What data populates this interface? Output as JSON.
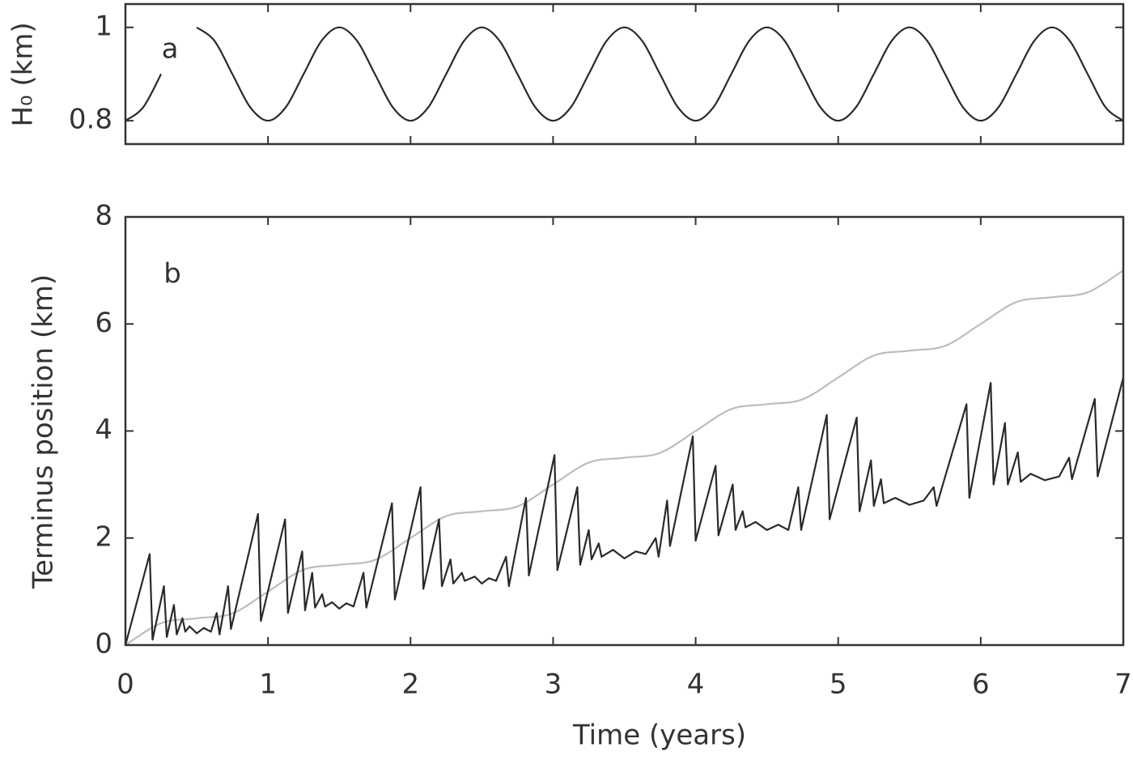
{
  "chart_data": [
    {
      "type": "line",
      "y_label": "H₀ (km)",
      "annotation": "a",
      "xlim": [
        0,
        7
      ],
      "ylim": [
        0.75,
        1.05
      ],
      "yticks": [
        0.8,
        1
      ],
      "x": [
        0,
        0.125,
        0.25,
        0.375,
        0.5,
        0.625,
        0.75,
        0.875,
        1,
        1.125,
        1.25,
        1.375,
        1.5,
        1.625,
        1.75,
        1.875,
        2,
        2.125,
        2.25,
        2.375,
        2.5,
        2.625,
        2.75,
        2.875,
        3,
        3.125,
        3.25,
        3.375,
        3.5,
        3.625,
        3.75,
        3.875,
        4,
        4.125,
        4.25,
        4.375,
        4.5,
        4.625,
        4.75,
        4.875,
        5,
        5.125,
        5.25,
        5.375,
        5.5,
        5.625,
        5.75,
        5.875,
        6,
        6.125,
        6.25,
        6.375,
        6.5,
        6.625,
        6.75,
        6.875,
        7
      ],
      "series": [
        {
          "color": "#2a2a2a",
          "values": [
            0.8,
            0.829,
            0.9,
            null,
            1,
            0.971,
            0.9,
            0.829,
            0.8,
            0.829,
            0.9,
            0.971,
            1,
            0.971,
            0.9,
            0.829,
            0.8,
            0.829,
            0.9,
            0.971,
            1,
            0.971,
            0.9,
            0.829,
            0.8,
            0.829,
            0.9,
            0.971,
            1,
            0.971,
            0.9,
            0.829,
            0.8,
            0.829,
            0.9,
            0.971,
            1,
            0.971,
            0.9,
            0.829,
            0.8,
            0.829,
            0.9,
            0.971,
            1,
            0.971,
            0.9,
            0.829,
            0.8,
            0.829,
            0.9,
            0.971,
            1,
            0.971,
            0.9,
            0.829,
            0.8
          ]
        }
      ]
    },
    {
      "type": "line",
      "x_label": "Time (years)",
      "y_label": "Terminus position (km)",
      "annotation": "b",
      "xlim": [
        0,
        7
      ],
      "ylim": [
        0,
        8
      ],
      "xticks": [
        0,
        1,
        2,
        3,
        4,
        5,
        6,
        7
      ],
      "yticks": [
        0,
        2,
        4,
        6,
        8
      ],
      "series": [
        {
          "color": "#bdbdbd",
          "smooth": true,
          "x": [
            0,
            0.25,
            0.5,
            0.75,
            1,
            1.25,
            1.5,
            1.75,
            2,
            2.25,
            2.5,
            2.75,
            3,
            3.25,
            3.5,
            3.75,
            4,
            4.25,
            4.5,
            4.75,
            5,
            5.25,
            5.5,
            5.75,
            6,
            6.25,
            6.5,
            6.75,
            7
          ],
          "values": [
            0,
            0.409,
            0.5,
            0.591,
            1,
            1.409,
            1.5,
            1.591,
            2,
            2.409,
            2.5,
            2.591,
            3,
            3.409,
            3.5,
            3.591,
            4,
            4.409,
            4.5,
            4.591,
            5,
            5.409,
            5.5,
            5.591,
            6,
            6.409,
            6.5,
            6.591,
            7
          ]
        },
        {
          "color": "#2a2a2a",
          "smooth": false,
          "x": [
            0,
            0.17,
            0.19,
            0.27,
            0.29,
            0.34,
            0.36,
            0.4,
            0.42,
            0.45,
            0.5,
            0.55,
            0.6,
            0.64,
            0.66,
            0.72,
            0.74,
            0.93,
            0.95,
            1.12,
            1.14,
            1.24,
            1.26,
            1.31,
            1.33,
            1.38,
            1.4,
            1.45,
            1.5,
            1.55,
            1.6,
            1.67,
            1.69,
            1.87,
            1.89,
            2.07,
            2.09,
            2.2,
            2.22,
            2.28,
            2.3,
            2.36,
            2.38,
            2.45,
            2.5,
            2.55,
            2.6,
            2.67,
            2.69,
            2.81,
            2.83,
            3.01,
            3.03,
            3.17,
            3.19,
            3.25,
            3.27,
            3.32,
            3.34,
            3.42,
            3.5,
            3.58,
            3.65,
            3.72,
            3.74,
            3.8,
            3.82,
            3.98,
            4,
            4.14,
            4.16,
            4.26,
            4.28,
            4.33,
            4.35,
            4.42,
            4.5,
            4.58,
            4.65,
            4.72,
            4.74,
            4.92,
            4.94,
            5.13,
            5.15,
            5.23,
            5.25,
            5.3,
            5.32,
            5.4,
            5.5,
            5.6,
            5.67,
            5.69,
            5.9,
            5.92,
            6.07,
            6.09,
            6.17,
            6.19,
            6.26,
            6.28,
            6.35,
            6.45,
            6.55,
            6.62,
            6.64,
            6.8,
            6.82,
            7
          ],
          "values": [
            0,
            1.7,
            0.1,
            1.1,
            0.15,
            0.75,
            0.2,
            0.5,
            0.25,
            0.35,
            0.22,
            0.32,
            0.25,
            0.6,
            0.2,
            1.1,
            0.3,
            2.45,
            0.45,
            2.35,
            0.6,
            1.75,
            0.65,
            1.35,
            0.7,
            0.95,
            0.72,
            0.8,
            0.68,
            0.78,
            0.72,
            1.35,
            0.7,
            2.65,
            0.85,
            2.95,
            1.05,
            2.35,
            1.1,
            1.6,
            1.15,
            1.35,
            1.2,
            1.28,
            1.15,
            1.25,
            1.2,
            1.65,
            1.1,
            2.75,
            1.3,
            3.55,
            1.4,
            2.95,
            1.5,
            2.15,
            1.6,
            1.9,
            1.65,
            1.78,
            1.62,
            1.75,
            1.7,
            2,
            1.65,
            2.7,
            1.85,
            3.9,
            1.95,
            3.35,
            2.05,
            3,
            2.15,
            2.5,
            2.2,
            2.3,
            2.15,
            2.25,
            2.15,
            2.95,
            2.15,
            4.3,
            2.35,
            4.25,
            2.5,
            3.45,
            2.6,
            3.1,
            2.65,
            2.75,
            2.62,
            2.7,
            2.95,
            2.6,
            4.5,
            2.75,
            4.9,
            3,
            4.15,
            3,
            3.6,
            3.05,
            3.2,
            3.08,
            3.15,
            3.5,
            3.1,
            4.6,
            3.15,
            5
          ]
        }
      ]
    }
  ]
}
